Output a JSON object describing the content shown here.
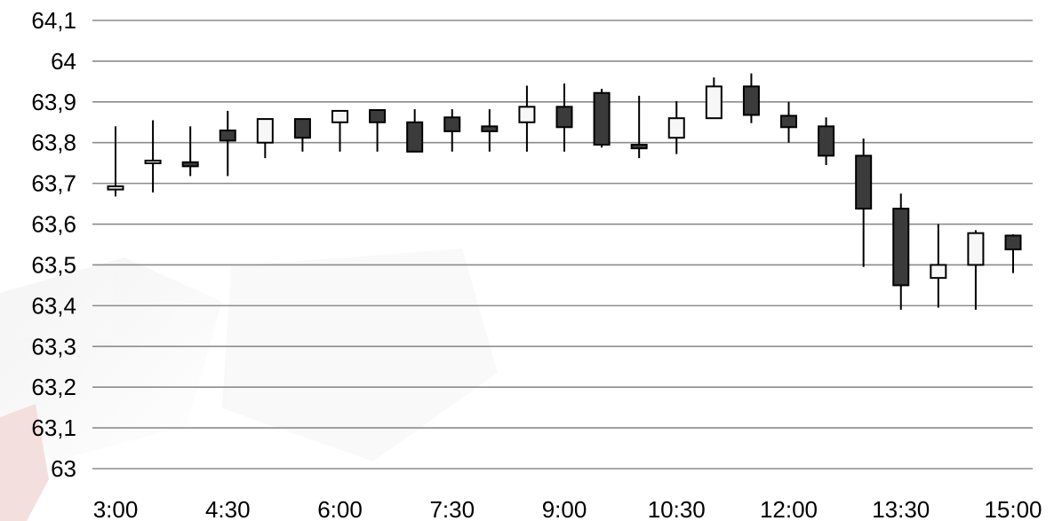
{
  "chart_data": {
    "type": "candlestick",
    "title": "",
    "xlabel": "",
    "ylabel": "",
    "ylim": [
      63,
      64.1
    ],
    "yticks": [
      "64,1",
      "64",
      "63,9",
      "63,8",
      "63,7",
      "63,6",
      "63,5",
      "63,4",
      "63,3",
      "63,2",
      "63,1",
      "63"
    ],
    "ytick_values": [
      64.1,
      64.0,
      63.9,
      63.8,
      63.7,
      63.6,
      63.5,
      63.4,
      63.3,
      63.2,
      63.1,
      63.0
    ],
    "xticks": [
      "3:00",
      "4:30",
      "6:00",
      "7:30",
      "9:00",
      "10:30",
      "12:00",
      "13:30",
      "15:00"
    ],
    "grid": true,
    "colors": {
      "down": "#3b3b3b",
      "up": "#f7f7f7",
      "grid": "#8c8c8c"
    },
    "candles": [
      {
        "x": "3:00",
        "open": 63.685,
        "high": 63.84,
        "low": 63.668,
        "close": 63.693
      },
      {
        "x": "3:30",
        "open": 63.752,
        "high": 63.855,
        "low": 63.678,
        "close": 63.756
      },
      {
        "x": "4:00",
        "open": 63.752,
        "high": 63.84,
        "low": 63.718,
        "close": 63.742
      },
      {
        "x": "4:30",
        "open": 63.83,
        "high": 63.878,
        "low": 63.718,
        "close": 63.805
      },
      {
        "x": "5:00",
        "open": 63.8,
        "high": 63.858,
        "low": 63.762,
        "close": 63.858
      },
      {
        "x": "5:30",
        "open": 63.858,
        "high": 63.858,
        "low": 63.778,
        "close": 63.812
      },
      {
        "x": "6:00",
        "open": 63.85,
        "high": 63.88,
        "low": 63.778,
        "close": 63.878
      },
      {
        "x": "6:30",
        "open": 63.88,
        "high": 63.882,
        "low": 63.778,
        "close": 63.85
      },
      {
        "x": "7:00",
        "open": 63.85,
        "high": 63.882,
        "low": 63.778,
        "close": 63.778
      },
      {
        "x": "7:30",
        "open": 63.862,
        "high": 63.882,
        "low": 63.778,
        "close": 63.828
      },
      {
        "x": "8:00",
        "open": 63.84,
        "high": 63.882,
        "low": 63.778,
        "close": 63.828
      },
      {
        "x": "8:30",
        "open": 63.85,
        "high": 63.94,
        "low": 63.778,
        "close": 63.888
      },
      {
        "x": "9:00",
        "open": 63.888,
        "high": 63.945,
        "low": 63.778,
        "close": 63.838
      },
      {
        "x": "9:30",
        "open": 63.922,
        "high": 63.932,
        "low": 63.788,
        "close": 63.795
      },
      {
        "x": "10:00",
        "open": 63.795,
        "high": 63.915,
        "low": 63.762,
        "close": 63.786
      },
      {
        "x": "10:30",
        "open": 63.812,
        "high": 63.902,
        "low": 63.772,
        "close": 63.86
      },
      {
        "x": "11:00",
        "open": 63.86,
        "high": 63.96,
        "low": 63.86,
        "close": 63.938
      },
      {
        "x": "11:30",
        "open": 63.938,
        "high": 63.97,
        "low": 63.848,
        "close": 63.868
      },
      {
        "x": "12:00",
        "open": 63.866,
        "high": 63.9,
        "low": 63.8,
        "close": 63.838
      },
      {
        "x": "12:30",
        "open": 63.84,
        "high": 63.862,
        "low": 63.745,
        "close": 63.768
      },
      {
        "x": "13:00",
        "open": 63.768,
        "high": 63.81,
        "low": 63.495,
        "close": 63.638
      },
      {
        "x": "13:30",
        "open": 63.638,
        "high": 63.675,
        "low": 63.39,
        "close": 63.45
      },
      {
        "x": "14:00",
        "open": 63.468,
        "high": 63.6,
        "low": 63.395,
        "close": 63.5
      },
      {
        "x": "14:30",
        "open": 63.5,
        "high": 63.585,
        "low": 63.39,
        "close": 63.578
      },
      {
        "x": "15:00",
        "open": 63.572,
        "high": 63.575,
        "low": 63.48,
        "close": 63.538
      }
    ]
  }
}
